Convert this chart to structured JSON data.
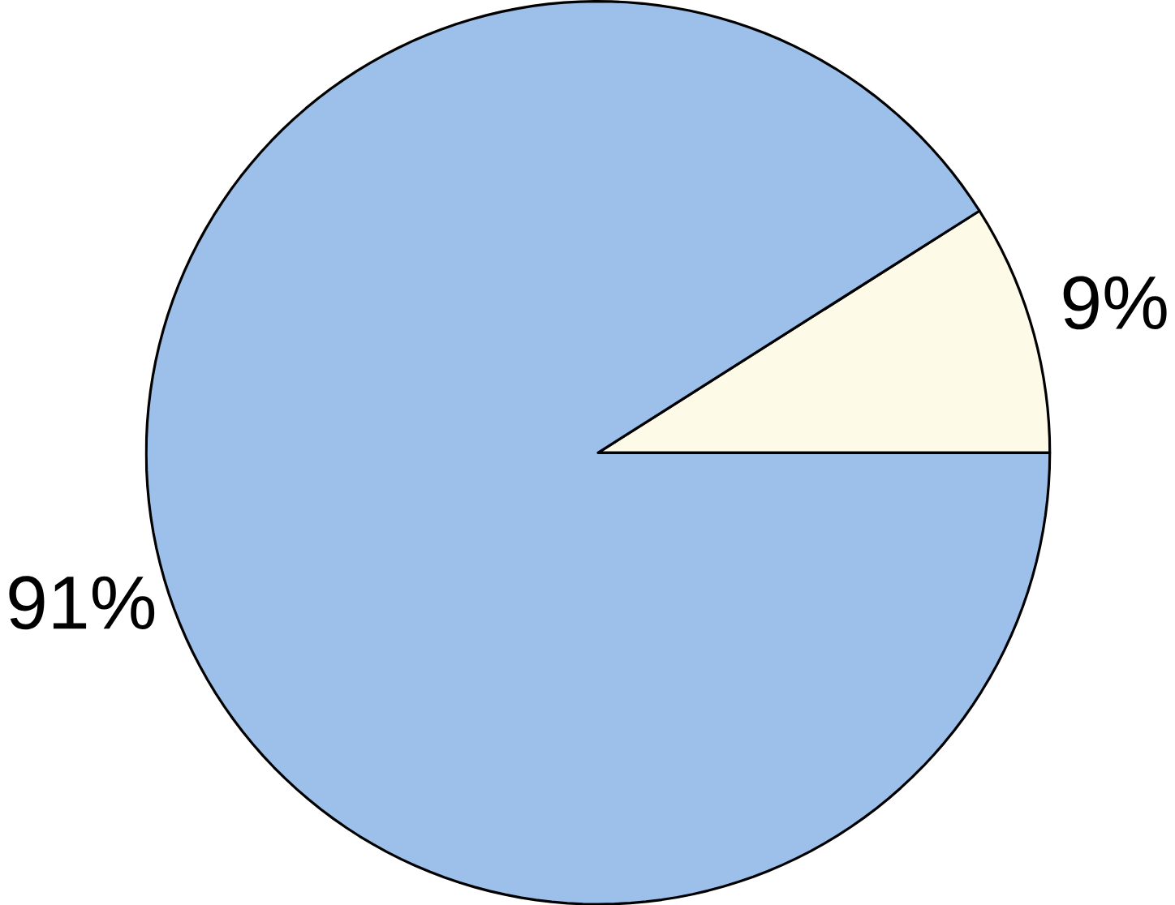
{
  "chart_data": {
    "type": "pie",
    "categories": [
      null,
      null
    ],
    "values": [
      9,
      91
    ],
    "colors": [
      "#fdfbe8",
      "#9dc0ea"
    ],
    "value_labels": [
      "9%",
      "91%"
    ]
  }
}
